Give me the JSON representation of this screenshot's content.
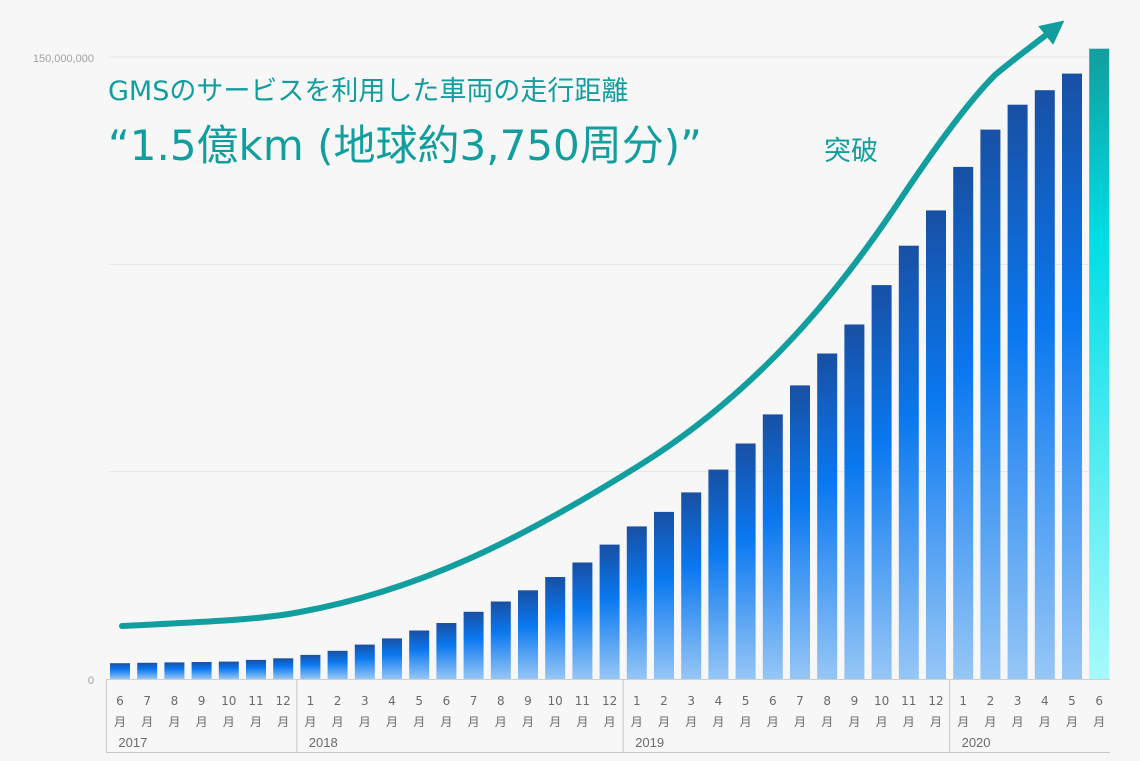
{
  "chart_data": {
    "type": "bar",
    "title_line1": "GMSのサービスを利用した車両の走行距離",
    "title_line2": "“1.5億km (地球約3,750周分)”",
    "title_suffix": "突破",
    "ytick_labels": [
      "150,000,000",
      "0"
    ],
    "ylim": [
      0,
      150000000
    ],
    "grid": true,
    "categories": [
      "6月",
      "7月",
      "8月",
      "9月",
      "10月",
      "11月",
      "12月",
      "1月",
      "2月",
      "3月",
      "4月",
      "5月",
      "6月",
      "7月",
      "8月",
      "9月",
      "10月",
      "11月",
      "12月",
      "1月",
      "2月",
      "3月",
      "4月",
      "5月",
      "6月",
      "7月",
      "8月",
      "9月",
      "10月",
      "11月",
      "12月",
      "1月",
      "2月",
      "3月",
      "4月",
      "5月",
      "6月"
    ],
    "month_numbers": [
      "6",
      "7",
      "8",
      "9",
      "10",
      "11",
      "12",
      "1",
      "2",
      "3",
      "4",
      "5",
      "6",
      "7",
      "8",
      "9",
      "10",
      "11",
      "12",
      "1",
      "2",
      "3",
      "4",
      "5",
      "6",
      "7",
      "8",
      "9",
      "10",
      "11",
      "12",
      "1",
      "2",
      "3",
      "4",
      "5",
      "6"
    ],
    "month_unit": "月",
    "years": [
      {
        "label": "2017",
        "start_index": 0
      },
      {
        "label": "2018",
        "start_index": 7
      },
      {
        "label": "2019",
        "start_index": 19
      },
      {
        "label": "2020",
        "start_index": 31
      }
    ],
    "values": [
      3800000,
      3900000,
      4000000,
      4100000,
      4200000,
      4600000,
      5000000,
      5800000,
      6800000,
      8300000,
      9800000,
      11700000,
      13500000,
      16200000,
      18700000,
      21400000,
      24600000,
      28100000,
      32400000,
      36800000,
      40300000,
      45000000,
      50500000,
      56800000,
      63800000,
      70800000,
      78500000,
      85500000,
      95000000,
      104500000,
      113000000,
      123500000,
      132500000,
      138500000,
      142000000,
      146000000,
      152000000
    ],
    "highlight_index": 36,
    "colors": {
      "bar_top": "#1850a4",
      "bar_mid": "#0a78f0",
      "bar_bottom": "#96c6f6",
      "highlight_top": "#129e9e",
      "highlight_mid": "#00dde6",
      "highlight_bottom": "#a6fafc",
      "trend_arrow": "#129e9e",
      "background": "#f7f7f7"
    }
  }
}
